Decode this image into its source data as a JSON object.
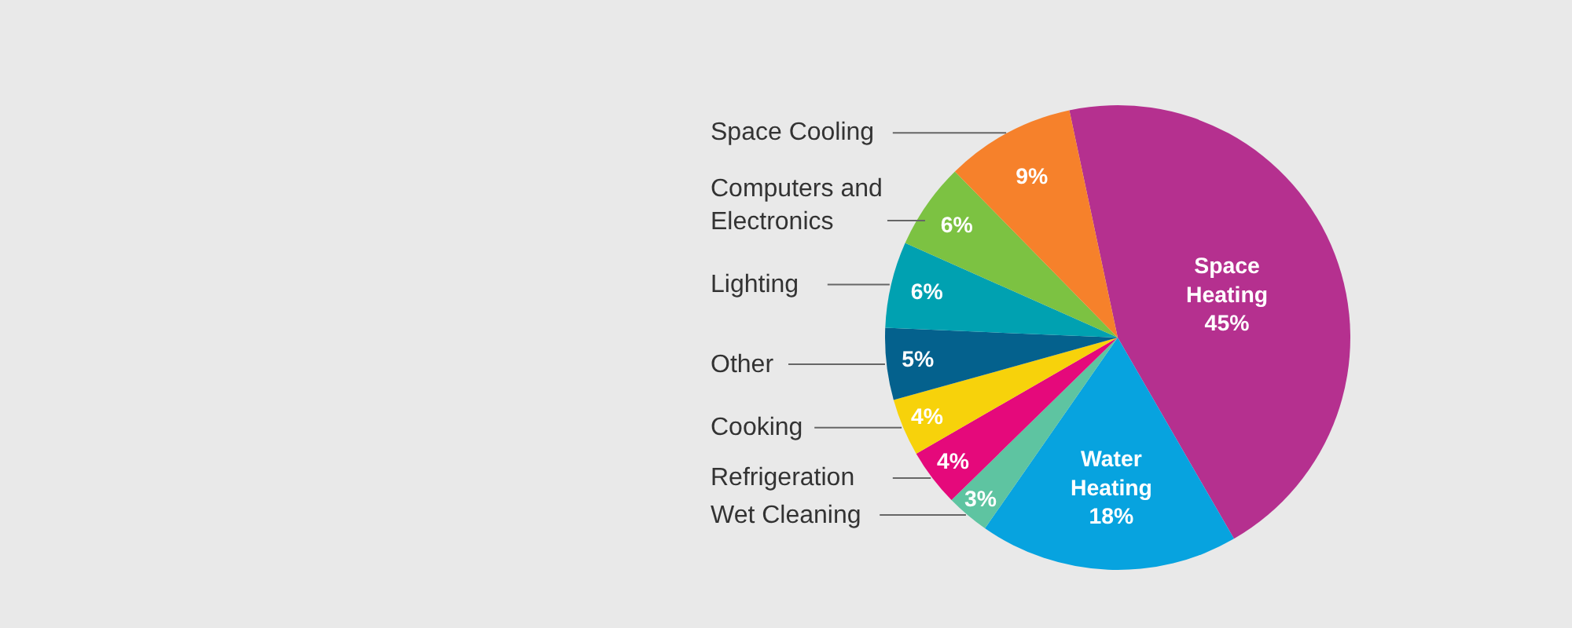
{
  "chart_data": {
    "type": "pie",
    "categories": [
      "Space Heating",
      "Water Heating",
      "Wet Cleaning",
      "Refrigeration",
      "Cooking",
      "Other",
      "Lighting",
      "Computers and Electronics",
      "Space Cooling"
    ],
    "values": [
      45,
      18,
      3,
      4,
      4,
      5,
      6,
      6,
      9
    ],
    "value_labels": [
      "45%",
      "18%",
      "3%",
      "4%",
      "4%",
      "5%",
      "6%",
      "6%",
      "9%"
    ],
    "colors": [
      "#b5308f",
      "#07a3df",
      "#5ec4a1",
      "#e5097b",
      "#f7d20b",
      "#04618d",
      "#00a1b1",
      "#7cc242",
      "#f6812b"
    ],
    "legend": false
  }
}
